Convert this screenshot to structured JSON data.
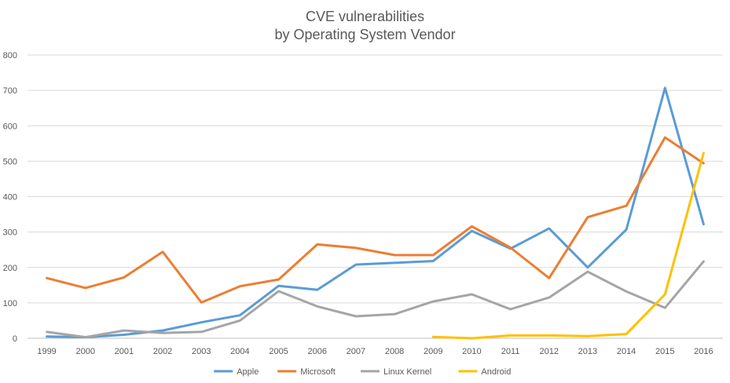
{
  "chart_data": {
    "type": "line",
    "title": "CVE vulnerabilities",
    "subtitle": "by Operating System Vendor",
    "xlabel": "",
    "ylabel": "",
    "ylim": [
      0,
      800
    ],
    "yticks": [
      0,
      100,
      200,
      300,
      400,
      500,
      600,
      700,
      800
    ],
    "grid": "horizontal",
    "legend": "bottom",
    "categories": [
      "1999",
      "2000",
      "2001",
      "2002",
      "2003",
      "2004",
      "2005",
      "2006",
      "2007",
      "2008",
      "2009",
      "2010",
      "2011",
      "2012",
      "2013",
      "2014",
      "2015",
      "2016"
    ],
    "series": [
      {
        "name": "Apple",
        "color": "#5B9BD5",
        "values": [
          5,
          3,
          10,
          22,
          45,
          65,
          148,
          137,
          208,
          213,
          218,
          303,
          253,
          310,
          200,
          307,
          707,
          322
        ]
      },
      {
        "name": "Microsoft",
        "color": "#ED7D31",
        "values": [
          170,
          142,
          172,
          244,
          101,
          147,
          166,
          265,
          255,
          235,
          235,
          316,
          256,
          170,
          342,
          374,
          567,
          494
        ]
      },
      {
        "name": "Linux Kernel",
        "color": "#A5A5A5",
        "values": [
          18,
          3,
          22,
          15,
          18,
          50,
          133,
          90,
          62,
          68,
          104,
          124,
          82,
          115,
          188,
          132,
          86,
          217
        ]
      },
      {
        "name": "Android",
        "color": "#FFC000",
        "values": [
          null,
          null,
          null,
          null,
          null,
          null,
          null,
          null,
          null,
          null,
          4,
          0,
          8,
          8,
          6,
          12,
          124,
          523
        ]
      }
    ]
  }
}
